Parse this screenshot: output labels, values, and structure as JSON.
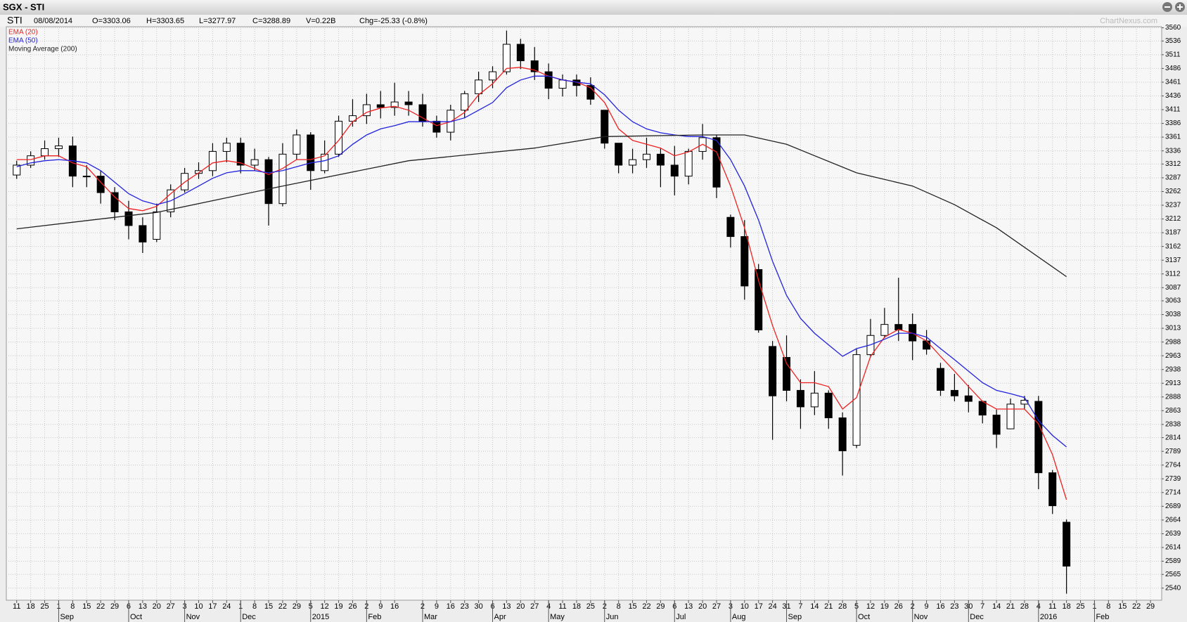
{
  "header": {
    "title": "SGX - STI",
    "symbol": "STI",
    "date": "08/08/2014",
    "open": "O=3303.06",
    "high": "H=3303.65",
    "low": "L=3277.97",
    "close": "C=3288.89",
    "volume": "V=0.22B",
    "change": "Chg=-25.33 (-0.8%)",
    "watermark": "ChartNexus.com"
  },
  "chart_data": {
    "type": "candlestick",
    "x": [
      0,
      1,
      2,
      3,
      4,
      5,
      6,
      7,
      8,
      9,
      10,
      11,
      12,
      13,
      14,
      15,
      16,
      17,
      18,
      19,
      20,
      21,
      22,
      23,
      24,
      25,
      26,
      27,
      28,
      29,
      30,
      31,
      32,
      33,
      34,
      35,
      36,
      37,
      38,
      39,
      40,
      41,
      42,
      43,
      44,
      45,
      46,
      47,
      48,
      49,
      50,
      51,
      52,
      53,
      54,
      55,
      56,
      57,
      58,
      59,
      60,
      61,
      62,
      63,
      64,
      65,
      66,
      67,
      68,
      69,
      70,
      71,
      72,
      73,
      74,
      75
    ],
    "open": [
      3292,
      3310,
      3327,
      3340,
      3345,
      3290,
      3290,
      3260,
      3225,
      3200,
      3175,
      3225,
      3265,
      3295,
      3300,
      3335,
      3350,
      3310,
      3320,
      3240,
      3330,
      3365,
      3300,
      3330,
      3390,
      3400,
      3420,
      3415,
      3425,
      3420,
      3390,
      3370,
      3410,
      3440,
      3465,
      3480,
      3530,
      3500,
      3480,
      3450,
      3465,
      3455,
      3410,
      3350,
      3310,
      3320,
      3330,
      3310,
      3290,
      3335,
      3360,
      3215,
      3180,
      3120,
      2980,
      2960,
      2900,
      2870,
      2895,
      2850,
      2800,
      2965,
      3000,
      3020,
      3020,
      2990,
      2940,
      2900,
      2890,
      2880,
      2855,
      2830,
      2875,
      2880,
      2750,
      2660
    ],
    "high": [
      3318,
      3335,
      3355,
      3360,
      3362,
      3310,
      3300,
      3270,
      3245,
      3215,
      3240,
      3275,
      3305,
      3315,
      3350,
      3360,
      3360,
      3340,
      3325,
      3350,
      3375,
      3370,
      3355,
      3400,
      3430,
      3440,
      3445,
      3460,
      3445,
      3440,
      3400,
      3420,
      3445,
      3480,
      3490,
      3555,
      3540,
      3525,
      3495,
      3475,
      3475,
      3470,
      3410,
      3350,
      3340,
      3360,
      3340,
      3345,
      3340,
      3385,
      3365,
      3220,
      3210,
      3130,
      2990,
      3000,
      2920,
      2935,
      2900,
      2860,
      2975,
      3030,
      3050,
      3105,
      3040,
      3010,
      2950,
      2930,
      2910,
      2880,
      2865,
      2885,
      2890,
      2890,
      2755,
      2665
    ],
    "low": [
      3285,
      3305,
      3320,
      3325,
      3270,
      3270,
      3240,
      3210,
      3175,
      3150,
      3170,
      3215,
      3260,
      3285,
      3290,
      3315,
      3295,
      3300,
      3200,
      3235,
      3320,
      3265,
      3295,
      3325,
      3380,
      3385,
      3395,
      3400,
      3400,
      3380,
      3360,
      3355,
      3395,
      3425,
      3450,
      3475,
      3485,
      3465,
      3430,
      3435,
      3435,
      3420,
      3340,
      3295,
      3295,
      3305,
      3270,
      3255,
      3275,
      3320,
      3250,
      3160,
      3065,
      3005,
      2810,
      2880,
      2830,
      2855,
      2830,
      2745,
      2795,
      2960,
      2995,
      2990,
      2955,
      2965,
      2890,
      2880,
      2860,
      2840,
      2795,
      2830,
      2865,
      2720,
      2675,
      2530
    ],
    "close": [
      3310,
      3327,
      3340,
      3345,
      3290,
      3290,
      3260,
      3225,
      3200,
      3170,
      3225,
      3265,
      3295,
      3300,
      3335,
      3350,
      3310,
      3320,
      3240,
      3330,
      3365,
      3300,
      3330,
      3390,
      3400,
      3420,
      3415,
      3425,
      3420,
      3390,
      3370,
      3410,
      3440,
      3465,
      3480,
      3530,
      3500,
      3480,
      3450,
      3465,
      3455,
      3430,
      3350,
      3310,
      3320,
      3330,
      3310,
      3290,
      3335,
      3360,
      3270,
      3180,
      3090,
      3010,
      2890,
      2900,
      2870,
      2895,
      2850,
      2790,
      2965,
      3000,
      3020,
      3010,
      2990,
      2975,
      2900,
      2890,
      2880,
      2855,
      2820,
      2875,
      2882,
      2750,
      2690,
      2580
    ],
    "up_color": "#ffffff",
    "down_color": "#000000",
    "series": [
      {
        "name": "EMA (20)",
        "color": "#ee2222",
        "values": [
          3320,
          3320,
          3327,
          3327,
          3314,
          3307,
          3279,
          3252,
          3231,
          3227,
          3235,
          3258,
          3279,
          3296,
          3314,
          3318,
          3314,
          3304,
          3293,
          3304,
          3320,
          3320,
          3327,
          3355,
          3389,
          3406,
          3414,
          3417,
          3410,
          3396,
          3382,
          3389,
          3406,
          3438,
          3458,
          3486,
          3488,
          3483,
          3472,
          3465,
          3461,
          3451,
          3424,
          3376,
          3355,
          3348,
          3341,
          3327,
          3334,
          3348,
          3334,
          3272,
          3196,
          3100,
          3018,
          2949,
          2914,
          2914,
          2907,
          2866,
          2887,
          2962,
          2997,
          3011,
          3004,
          2990,
          2962,
          2935,
          2907,
          2880,
          2866,
          2866,
          2866,
          2839,
          2783,
          2701
        ]
      },
      {
        "name": "EMA (50)",
        "color": "#2222dd",
        "values": [
          3307,
          3314,
          3318,
          3320,
          3318,
          3314,
          3300,
          3279,
          3258,
          3245,
          3238,
          3245,
          3258,
          3272,
          3286,
          3296,
          3300,
          3300,
          3296,
          3300,
          3307,
          3314,
          3318,
          3327,
          3348,
          3365,
          3376,
          3382,
          3389,
          3389,
          3389,
          3389,
          3396,
          3410,
          3424,
          3451,
          3465,
          3472,
          3472,
          3465,
          3461,
          3458,
          3438,
          3410,
          3389,
          3376,
          3369,
          3365,
          3362,
          3362,
          3355,
          3320,
          3272,
          3210,
          3135,
          3073,
          3031,
          3004,
          2983,
          2962,
          2976,
          2983,
          2993,
          3004,
          3004,
          2997,
          2976,
          2956,
          2935,
          2914,
          2900,
          2894,
          2887,
          2845,
          2818,
          2797
        ]
      },
      {
        "name": "Moving Average (200)",
        "color": "#222222",
        "x": [
          0,
          10,
          19,
          28,
          37,
          42,
          49,
          52,
          55,
          60,
          64,
          67,
          70,
          75
        ],
        "values": [
          3194,
          3224,
          3272,
          3318,
          3341,
          3362,
          3365,
          3365,
          3348,
          3296,
          3272,
          3238,
          3196,
          3107
        ]
      }
    ],
    "ylim": [
      2518,
      3562
    ],
    "yticks": [
      3560,
      3536,
      3511,
      3486,
      3461,
      3436,
      3411,
      3386,
      3361,
      3336,
      3312,
      3287,
      3262,
      3237,
      3212,
      3187,
      3162,
      3137,
      3112,
      3087,
      3063,
      3038,
      3013,
      2988,
      2963,
      2938,
      2913,
      2888,
      2863,
      2838,
      2814,
      2789,
      2764,
      2739,
      2714,
      2689,
      2664,
      2639,
      2614,
      2589,
      2565,
      2540
    ],
    "xlim": [
      -0.74,
      81.8
    ],
    "xticks": [
      {
        "value": 0,
        "label": "11"
      },
      {
        "value": 1,
        "label": "18"
      },
      {
        "value": 2,
        "label": "25"
      },
      {
        "value": 3,
        "label": "1"
      },
      {
        "value": 4,
        "label": "8"
      },
      {
        "value": 5,
        "label": "15"
      },
      {
        "value": 6,
        "label": "22"
      },
      {
        "value": 7,
        "label": "29"
      },
      {
        "value": 8,
        "label": "6"
      },
      {
        "value": 9,
        "label": "13"
      },
      {
        "value": 10,
        "label": "20"
      },
      {
        "value": 11,
        "label": "27"
      },
      {
        "value": 12,
        "label": "3"
      },
      {
        "value": 13,
        "label": "10"
      },
      {
        "value": 14,
        "label": "17"
      },
      {
        "value": 15,
        "label": "24"
      },
      {
        "value": 16,
        "label": "1"
      },
      {
        "value": 17,
        "label": "8"
      },
      {
        "value": 18,
        "label": "15"
      },
      {
        "value": 19,
        "label": "22"
      },
      {
        "value": 20,
        "label": "29"
      },
      {
        "value": 21,
        "label": "5"
      },
      {
        "value": 22,
        "label": "12"
      },
      {
        "value": 23,
        "label": "19"
      },
      {
        "value": 24,
        "label": "26"
      },
      {
        "value": 25,
        "label": "2"
      },
      {
        "value": 26,
        "label": "9"
      },
      {
        "value": 27,
        "label": "16"
      },
      {
        "value": 29,
        "label": "2"
      },
      {
        "value": 30,
        "label": "9"
      },
      {
        "value": 31,
        "label": "16"
      },
      {
        "value": 32,
        "label": "23"
      },
      {
        "value": 33,
        "label": "30"
      },
      {
        "value": 34,
        "label": "6"
      },
      {
        "value": 35,
        "label": "13"
      },
      {
        "value": 36,
        "label": "20"
      },
      {
        "value": 37,
        "label": "27"
      },
      {
        "value": 38,
        "label": "4"
      },
      {
        "value": 39,
        "label": "11"
      },
      {
        "value": 40,
        "label": "18"
      },
      {
        "value": 41,
        "label": "25"
      },
      {
        "value": 42,
        "label": "2"
      },
      {
        "value": 43,
        "label": "8"
      },
      {
        "value": 44,
        "label": "15"
      },
      {
        "value": 45,
        "label": "22"
      },
      {
        "value": 46,
        "label": "29"
      },
      {
        "value": 47,
        "label": "6"
      },
      {
        "value": 48,
        "label": "13"
      },
      {
        "value": 49,
        "label": "20"
      },
      {
        "value": 50,
        "label": "27"
      },
      {
        "value": 51,
        "label": "3"
      },
      {
        "value": 52,
        "label": "10"
      },
      {
        "value": 53,
        "label": "17"
      },
      {
        "value": 54,
        "label": "24"
      },
      {
        "value": 55,
        "label": "31"
      },
      {
        "value": 56,
        "label": "7"
      },
      {
        "value": 57,
        "label": "14"
      },
      {
        "value": 58,
        "label": "21"
      },
      {
        "value": 59,
        "label": "28"
      },
      {
        "value": 60,
        "label": "5"
      },
      {
        "value": 61,
        "label": "12"
      },
      {
        "value": 62,
        "label": "19"
      },
      {
        "value": 63,
        "label": "26"
      },
      {
        "value": 64,
        "label": "2"
      },
      {
        "value": 65,
        "label": "9"
      },
      {
        "value": 66,
        "label": "16"
      },
      {
        "value": 67,
        "label": "23"
      },
      {
        "value": 68,
        "label": "30"
      },
      {
        "value": 69,
        "label": "7"
      },
      {
        "value": 70,
        "label": "14"
      },
      {
        "value": 71,
        "label": "21"
      },
      {
        "value": 72,
        "label": "28"
      },
      {
        "value": 73,
        "label": "4"
      },
      {
        "value": 74,
        "label": "11"
      },
      {
        "value": 75,
        "label": "18"
      },
      {
        "value": 76,
        "label": "25"
      },
      {
        "value": 77,
        "label": "1"
      },
      {
        "value": 78,
        "label": "8"
      },
      {
        "value": 79,
        "label": "15"
      },
      {
        "value": 80,
        "label": "22"
      },
      {
        "value": 81,
        "label": "29"
      }
    ],
    "month_labels": [
      {
        "value": 3,
        "label": "Sep"
      },
      {
        "value": 8,
        "label": "Oct"
      },
      {
        "value": 12,
        "label": "Nov"
      },
      {
        "value": 16,
        "label": "Dec"
      },
      {
        "value": 21,
        "label": "2015"
      },
      {
        "value": 25,
        "label": "Feb"
      },
      {
        "value": 29,
        "label": "Mar"
      },
      {
        "value": 34,
        "label": "Apr"
      },
      {
        "value": 38,
        "label": "May"
      },
      {
        "value": 42,
        "label": "Jun"
      },
      {
        "value": 47,
        "label": "Jul"
      },
      {
        "value": 51,
        "label": "Aug"
      },
      {
        "value": 55,
        "label": "Sep"
      },
      {
        "value": 60,
        "label": "Oct"
      },
      {
        "value": 64,
        "label": "Nov"
      },
      {
        "value": 68,
        "label": "Dec"
      },
      {
        "value": 73,
        "label": "2016"
      },
      {
        "value": 77,
        "label": "Feb"
      }
    ],
    "grid": true
  }
}
